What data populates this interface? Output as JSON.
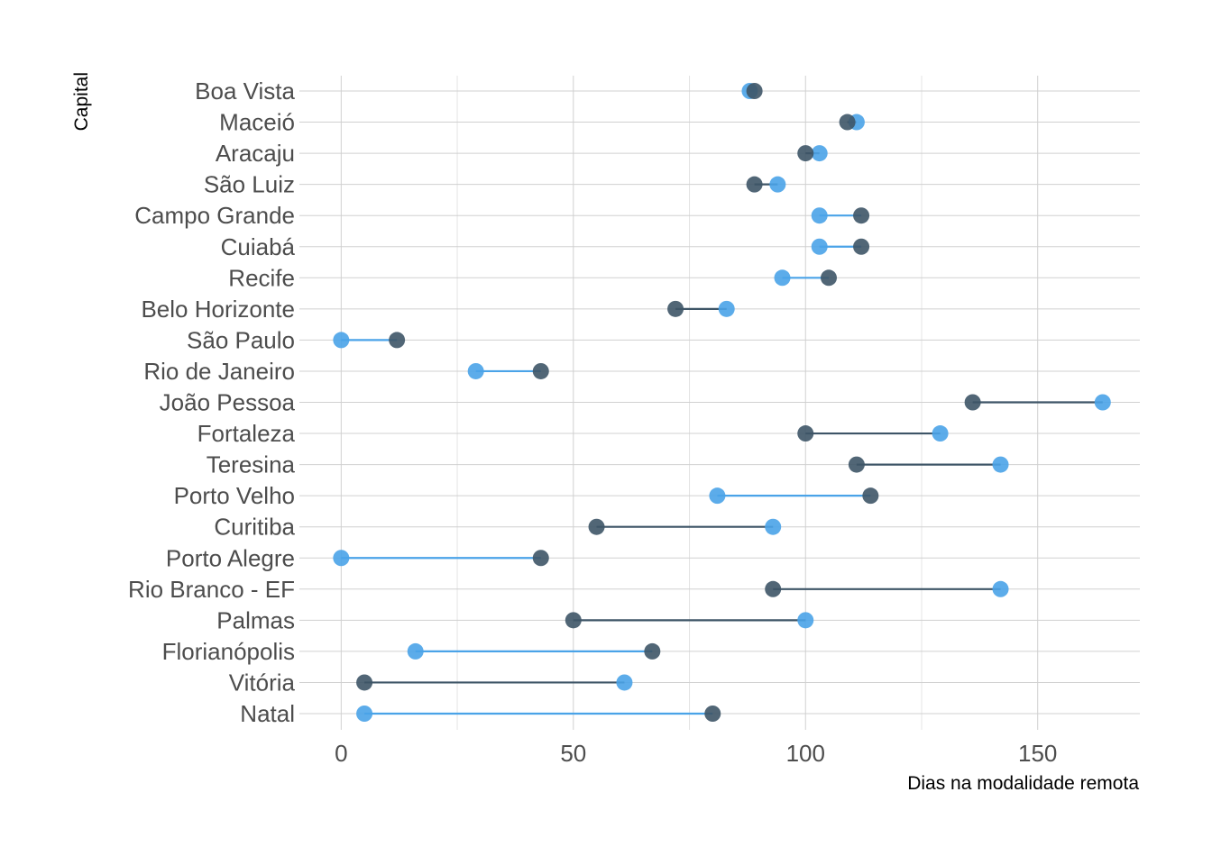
{
  "colors": {
    "series_a": "#4aa3e8",
    "series_b": "#3e5567",
    "background": "#ffffff"
  },
  "chart_data": {
    "type": "dumbbell",
    "title": "",
    "xlabel": "Dias na modalidade remota",
    "ylabel": "Capital",
    "xlim": [
      -9,
      172
    ],
    "xticks": [
      0,
      50,
      100,
      150
    ],
    "grid": true,
    "legend": "none",
    "categories": [
      "Boa Vista",
      "Maceió",
      "Aracaju",
      "São Luiz",
      "Campo Grande",
      "Cuiabá",
      "Recife",
      "Belo Horizonte",
      "São Paulo",
      "Rio de Janeiro",
      "João Pessoa",
      "Fortaleza",
      "Teresina",
      "Porto Velho",
      "Curitiba",
      "Porto Alegre",
      "Rio Branco - EF",
      "Palmas",
      "Florianópolis",
      "Vitória",
      "Natal"
    ],
    "series": [
      {
        "color": "#4aa3e8",
        "values": [
          88,
          111,
          103,
          94,
          103,
          103,
          95,
          83,
          0,
          29,
          164,
          129,
          142,
          81,
          93,
          0,
          142,
          100,
          16,
          61,
          5
        ]
      },
      {
        "color": "#3e5567",
        "values": [
          89,
          109,
          100,
          89,
          112,
          112,
          105,
          72,
          12,
          43,
          136,
          100,
          111,
          114,
          55,
          43,
          93,
          50,
          67,
          5,
          80
        ]
      }
    ]
  }
}
